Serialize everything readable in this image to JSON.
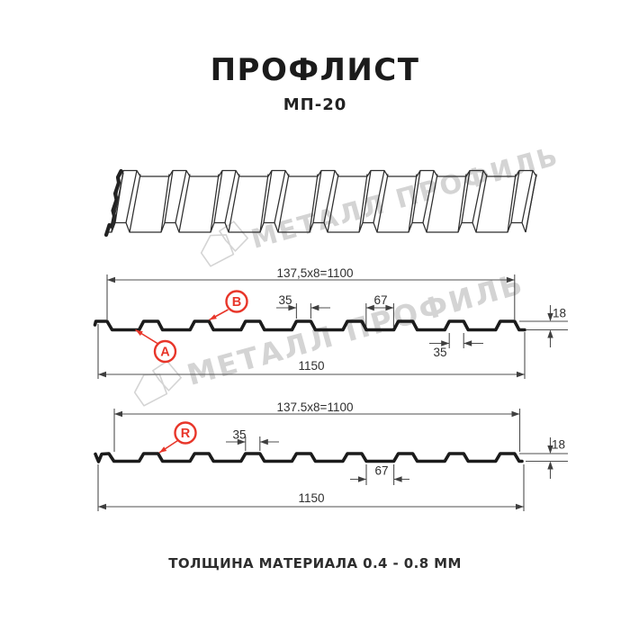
{
  "header": {
    "title": "ПРОФЛИСТ",
    "subtitle": "МП-20"
  },
  "watermark": {
    "text": "МЕТАЛЛ ПРОФИЛЬ"
  },
  "drawing_top": {
    "dim_formula": "137,5x8=1100",
    "dim_total_width": "1150",
    "dim_crest_width": "35",
    "dim_valley_width": "67",
    "dim_crest_width_lower": "35",
    "dim_height": "18",
    "label_a": "А",
    "label_b": "В"
  },
  "drawing_bottom": {
    "dim_formula": "137.5x8=1100",
    "dim_total_width": "1150",
    "dim_crest_width": "35",
    "dim_valley_width": "67",
    "dim_height": "18",
    "label_r": "R"
  },
  "footer": {
    "thickness_note": "ТОЛЩИНА МАТЕРИАЛА 0.4 - 0.8 ММ"
  },
  "colors": {
    "accent_red": "#e8362a",
    "watermark_gray": "#d4d4d4",
    "line": "#4f4f4f",
    "profile": "#1b1b1b"
  }
}
